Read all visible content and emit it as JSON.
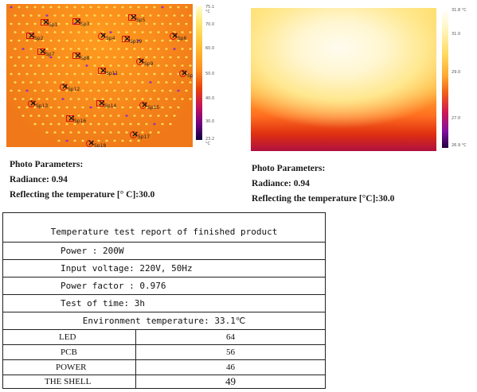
{
  "left_image": {
    "scale_ticks": [
      "75.1 °C",
      "70.0",
      "60.0",
      "50.0",
      "40.0",
      "30.0",
      "23.2 °C"
    ],
    "markers": [
      {
        "label": "Sp1"
      },
      {
        "label": "Sp2"
      },
      {
        "label": "Sp3"
      },
      {
        "label": "Sp4"
      },
      {
        "label": "Sp5"
      },
      {
        "label": "Sp6"
      },
      {
        "label": "Sp7"
      },
      {
        "label": "Sp8"
      },
      {
        "label": "Sp9"
      },
      {
        "label": "Sp10"
      },
      {
        "label": "Sp11"
      },
      {
        "label": "Sp12"
      },
      {
        "label": "Sp13"
      },
      {
        "label": "Sp14"
      },
      {
        "label": "Sp15"
      },
      {
        "label": "Sp16"
      },
      {
        "label": "Sp17"
      },
      {
        "label": "Sp18"
      },
      {
        "label": "Sp19"
      }
    ]
  },
  "right_image": {
    "scale_ticks": [
      "31.8 °C",
      "31.0",
      "29.0",
      "27.0",
      "26.9 °C"
    ]
  },
  "left_params": {
    "heading": "Photo Parameters:",
    "radiance": "Radiance:  0.94",
    "reflecting": "Reflecting the temperature [° C]:30.0"
  },
  "right_params": {
    "heading": "Photo Parameters:",
    "radiance": "Radiance:  0.94",
    "reflecting": "Reflecting the temperature [°C]:30.0"
  },
  "report": {
    "title": "Temperature test report of finished product",
    "power": "Power : 200W",
    "input_voltage": "Input voltage: 220V, 50Hz",
    "power_factor": "Power factor : 0.976",
    "test_time": "Test of time: 3h",
    "environment": "Environment temperature: 33.1℃",
    "rows": [
      {
        "name": "LED",
        "value": "64"
      },
      {
        "name": "PCB",
        "value": "56"
      },
      {
        "name": "POWER",
        "value": "46"
      },
      {
        "name": "THE SHELL",
        "value": "49"
      }
    ]
  },
  "colors": {
    "hot": "#ffe870",
    "warm": "#f07818",
    "cool": "#700080"
  }
}
